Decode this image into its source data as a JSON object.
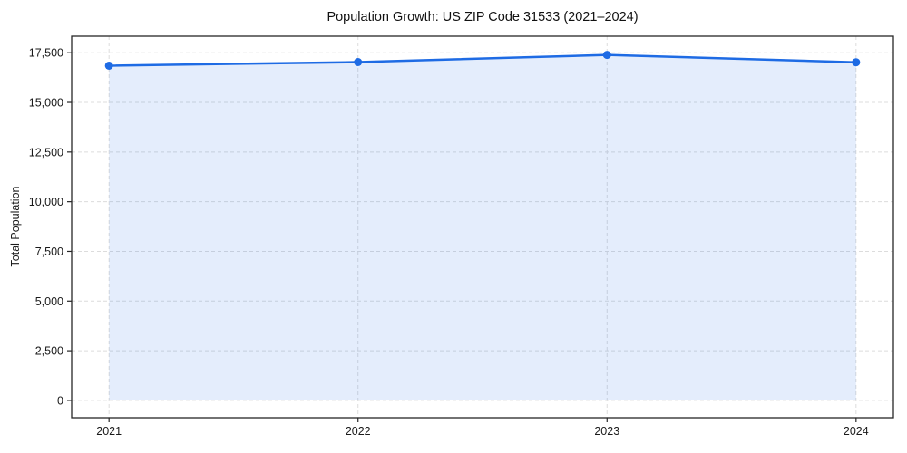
{
  "chart_data": {
    "type": "area",
    "title": "Population Growth: US ZIP Code 31533 (2021–2024)",
    "xlabel": "",
    "ylabel": "Total Population",
    "series_name": "Total Population",
    "x": [
      2021,
      2022,
      2023,
      2024
    ],
    "values": [
      16850,
      17030,
      17390,
      17020
    ],
    "xticks": [
      2021,
      2022,
      2023,
      2024
    ],
    "yticks": [
      0,
      2500,
      5000,
      7500,
      10000,
      12500,
      15000,
      17500
    ],
    "xlim": [
      2020.85,
      2024.15
    ],
    "ylim": [
      -870,
      18330
    ],
    "grid": true,
    "legend": "none",
    "line_color": "#1e6be4",
    "fill_color": "rgba(30, 107, 228, 0.12)",
    "grid_color": "#dcdcdc",
    "spine_color": "#262626",
    "marker": "circle"
  }
}
